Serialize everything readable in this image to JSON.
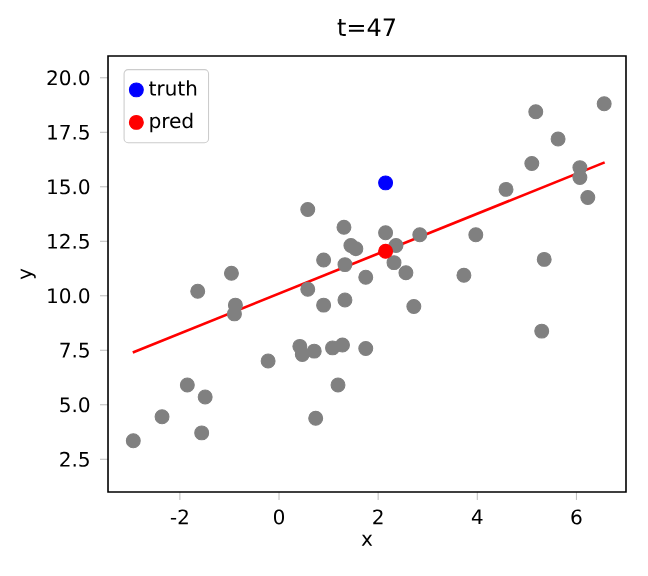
{
  "chart_data": {
    "type": "scatter",
    "title": "t=47",
    "xlabel": "x",
    "ylabel": "y",
    "xlim": [
      -3.45,
      7.0
    ],
    "ylim": [
      1.0,
      21.0
    ],
    "xticks": [
      -2,
      0,
      2,
      4,
      6
    ],
    "yticks": [
      {
        "value": 2.5,
        "label": "2.5"
      },
      {
        "value": 5,
        "label": "5.0"
      },
      {
        "value": 7.5,
        "label": "7.5"
      },
      {
        "value": 10,
        "label": "10.0"
      },
      {
        "value": 12.5,
        "label": "12.5"
      },
      {
        "value": 15,
        "label": "15.0"
      },
      {
        "value": 17.5,
        "label": "17.5"
      },
      {
        "value": 20,
        "label": "20.0"
      }
    ],
    "legend": "top left",
    "series": [
      {
        "marker": "circle",
        "color": "#808080",
        "x": [
          -2.94,
          -2.36,
          -1.85,
          -1.49,
          -1.56,
          -1.64,
          -0.96,
          -0.88,
          -0.9,
          -0.22,
          0.58,
          0.58,
          0.42,
          0.47,
          0.71,
          0.74,
          0.9,
          0.9,
          1.19,
          1.08,
          1.28,
          1.31,
          1.33,
          1.33,
          1.45,
          1.55,
          1.75,
          1.75,
          2.15,
          2.36,
          2.32,
          2.56,
          2.72,
          2.84,
          3.73,
          3.97,
          4.58,
          5.1,
          5.18,
          5.63,
          5.35,
          5.3,
          6.07,
          6.07,
          6.23,
          6.56
        ],
        "values": [
          3.35,
          4.45,
          5.91,
          5.36,
          3.71,
          10.21,
          11.03,
          9.57,
          9.17,
          7.01,
          13.96,
          10.3,
          7.68,
          7.31,
          7.46,
          4.38,
          11.64,
          9.57,
          5.91,
          7.61,
          7.74,
          13.14,
          11.43,
          9.81,
          12.31,
          12.16,
          10.85,
          7.58,
          12.89,
          12.31,
          11.52,
          11.06,
          9.51,
          12.8,
          10.94,
          12.8,
          14.88,
          16.07,
          18.44,
          17.19,
          11.67,
          8.38,
          15.88,
          15.43,
          14.51,
          18.81
        ]
      },
      {
        "type": "line",
        "marker": "none",
        "color": "#ff0000",
        "x": [
          -2.95,
          6.57
        ],
        "values": [
          7.4,
          16.12
        ]
      },
      {
        "name": "truth",
        "marker": "circle",
        "color": "#0000ff",
        "x": [
          2.15
        ],
        "values": [
          15.18
        ]
      },
      {
        "name": "pred",
        "marker": "circle",
        "color": "#ff0000",
        "x": [
          2.15
        ],
        "values": [
          12.04
        ]
      }
    ]
  }
}
